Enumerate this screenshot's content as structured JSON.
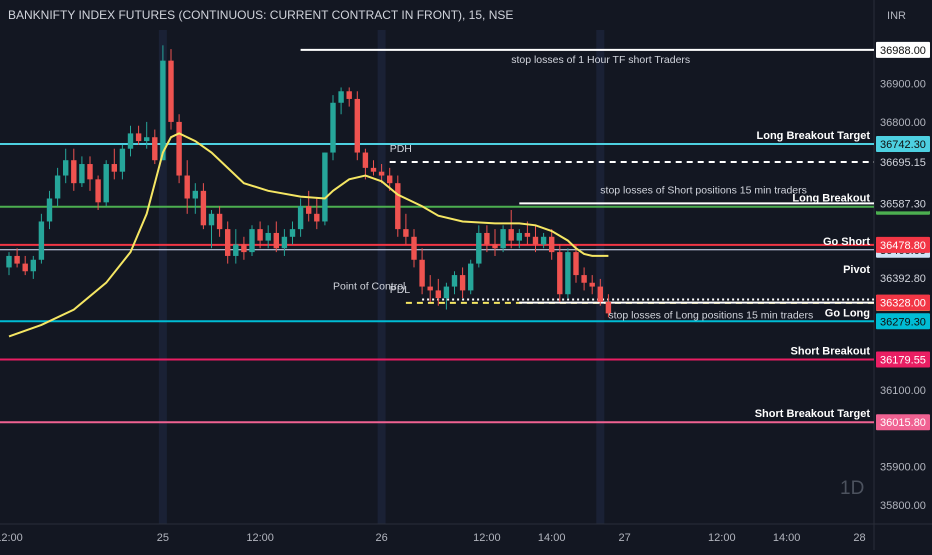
{
  "chart_data": {
    "type": "candlestick",
    "title": "BANKNIFTY INDEX FUTURES (CONTINUOUS: CURRENT CONTRACT IN FRONT), 15, NSE",
    "currency": "INR",
    "watermark": "1D",
    "ylim": [
      35750,
      37040
    ],
    "y_ticks": [
      36900,
      36800,
      36100,
      35900,
      35800
    ],
    "x_ticks": [
      {
        "label": "12:00",
        "i": 0
      },
      {
        "label": "25",
        "i": 19
      },
      {
        "label": "12:00",
        "i": 31
      },
      {
        "label": "26",
        "i": 46
      },
      {
        "label": "12:00",
        "i": 59
      },
      {
        "label": "14:00",
        "i": 67
      },
      {
        "label": "27",
        "i": 76
      },
      {
        "label": "12:00",
        "i": 88
      },
      {
        "label": "14:00",
        "i": 96
      },
      {
        "label": "28",
        "i": 105
      }
    ],
    "session_breaks": [
      19,
      46,
      73
    ],
    "candles": [
      {
        "o": 36420,
        "h": 36460,
        "l": 36400,
        "c": 36450
      },
      {
        "o": 36450,
        "h": 36470,
        "l": 36420,
        "c": 36430
      },
      {
        "o": 36430,
        "h": 36450,
        "l": 36400,
        "c": 36410
      },
      {
        "o": 36410,
        "h": 36450,
        "l": 36390,
        "c": 36440
      },
      {
        "o": 36440,
        "h": 36560,
        "l": 36430,
        "c": 36540
      },
      {
        "o": 36540,
        "h": 36620,
        "l": 36520,
        "c": 36600
      },
      {
        "o": 36600,
        "h": 36680,
        "l": 36580,
        "c": 36660
      },
      {
        "o": 36660,
        "h": 36730,
        "l": 36640,
        "c": 36700
      },
      {
        "o": 36700,
        "h": 36730,
        "l": 36620,
        "c": 36640
      },
      {
        "o": 36640,
        "h": 36710,
        "l": 36630,
        "c": 36690
      },
      {
        "o": 36690,
        "h": 36710,
        "l": 36620,
        "c": 36650
      },
      {
        "o": 36650,
        "h": 36660,
        "l": 36570,
        "c": 36590
      },
      {
        "o": 36590,
        "h": 36700,
        "l": 36580,
        "c": 36690
      },
      {
        "o": 36690,
        "h": 36730,
        "l": 36650,
        "c": 36670
      },
      {
        "o": 36670,
        "h": 36740,
        "l": 36650,
        "c": 36730
      },
      {
        "o": 36730,
        "h": 36790,
        "l": 36710,
        "c": 36770
      },
      {
        "o": 36770,
        "h": 36790,
        "l": 36740,
        "c": 36750
      },
      {
        "o": 36750,
        "h": 36800,
        "l": 36730,
        "c": 36760
      },
      {
        "o": 36760,
        "h": 36780,
        "l": 36690,
        "c": 36700
      },
      {
        "o": 36700,
        "h": 37000,
        "l": 36700,
        "c": 36960
      },
      {
        "o": 36960,
        "h": 36990,
        "l": 36780,
        "c": 36800
      },
      {
        "o": 36800,
        "h": 36820,
        "l": 36640,
        "c": 36660
      },
      {
        "o": 36660,
        "h": 36700,
        "l": 36560,
        "c": 36600
      },
      {
        "o": 36600,
        "h": 36640,
        "l": 36560,
        "c": 36620
      },
      {
        "o": 36620,
        "h": 36640,
        "l": 36520,
        "c": 36530
      },
      {
        "o": 36530,
        "h": 36570,
        "l": 36470,
        "c": 36560
      },
      {
        "o": 36560,
        "h": 36580,
        "l": 36500,
        "c": 36520
      },
      {
        "o": 36520,
        "h": 36540,
        "l": 36430,
        "c": 36450
      },
      {
        "o": 36450,
        "h": 36520,
        "l": 36430,
        "c": 36480
      },
      {
        "o": 36480,
        "h": 36500,
        "l": 36440,
        "c": 36460
      },
      {
        "o": 36460,
        "h": 36530,
        "l": 36450,
        "c": 36520
      },
      {
        "o": 36520,
        "h": 36540,
        "l": 36470,
        "c": 36490
      },
      {
        "o": 36490,
        "h": 36530,
        "l": 36470,
        "c": 36510
      },
      {
        "o": 36510,
        "h": 36540,
        "l": 36460,
        "c": 36470
      },
      {
        "o": 36470,
        "h": 36520,
        "l": 36450,
        "c": 36500
      },
      {
        "o": 36500,
        "h": 36540,
        "l": 36480,
        "c": 36520
      },
      {
        "o": 36520,
        "h": 36600,
        "l": 36500,
        "c": 36580
      },
      {
        "o": 36580,
        "h": 36620,
        "l": 36540,
        "c": 36560
      },
      {
        "o": 36560,
        "h": 36600,
        "l": 36520,
        "c": 36540
      },
      {
        "o": 36540,
        "h": 36720,
        "l": 36530,
        "c": 36720
      },
      {
        "o": 36720,
        "h": 36870,
        "l": 36700,
        "c": 36850
      },
      {
        "o": 36850,
        "h": 36890,
        "l": 36820,
        "c": 36880
      },
      {
        "o": 36880,
        "h": 36890,
        "l": 36840,
        "c": 36860
      },
      {
        "o": 36860,
        "h": 36880,
        "l": 36700,
        "c": 36720
      },
      {
        "o": 36720,
        "h": 36730,
        "l": 36650,
        "c": 36680
      },
      {
        "o": 36680,
        "h": 36700,
        "l": 36660,
        "c": 36670
      },
      {
        "o": 36670,
        "h": 36690,
        "l": 36640,
        "c": 36660
      },
      {
        "o": 36660,
        "h": 36680,
        "l": 36620,
        "c": 36640
      },
      {
        "o": 36640,
        "h": 36660,
        "l": 36500,
        "c": 36520
      },
      {
        "o": 36520,
        "h": 36560,
        "l": 36480,
        "c": 36500
      },
      {
        "o": 36500,
        "h": 36520,
        "l": 36420,
        "c": 36440
      },
      {
        "o": 36440,
        "h": 36470,
        "l": 36350,
        "c": 36370
      },
      {
        "o": 36370,
        "h": 36400,
        "l": 36330,
        "c": 36360
      },
      {
        "o": 36360,
        "h": 36390,
        "l": 36320,
        "c": 36340
      },
      {
        "o": 36340,
        "h": 36380,
        "l": 36310,
        "c": 36370
      },
      {
        "o": 36370,
        "h": 36410,
        "l": 36350,
        "c": 36400
      },
      {
        "o": 36400,
        "h": 36420,
        "l": 36340,
        "c": 36360
      },
      {
        "o": 36360,
        "h": 36440,
        "l": 36350,
        "c": 36430
      },
      {
        "o": 36430,
        "h": 36530,
        "l": 36420,
        "c": 36510
      },
      {
        "o": 36510,
        "h": 36530,
        "l": 36460,
        "c": 36480
      },
      {
        "o": 36480,
        "h": 36520,
        "l": 36450,
        "c": 36470
      },
      {
        "o": 36470,
        "h": 36530,
        "l": 36460,
        "c": 36520
      },
      {
        "o": 36520,
        "h": 36570,
        "l": 36470,
        "c": 36490
      },
      {
        "o": 36490,
        "h": 36520,
        "l": 36470,
        "c": 36510
      },
      {
        "o": 36510,
        "h": 36540,
        "l": 36480,
        "c": 36500
      },
      {
        "o": 36500,
        "h": 36530,
        "l": 36460,
        "c": 36480
      },
      {
        "o": 36480,
        "h": 36510,
        "l": 36470,
        "c": 36500
      },
      {
        "o": 36500,
        "h": 36520,
        "l": 36440,
        "c": 36460
      },
      {
        "o": 36460,
        "h": 36480,
        "l": 36330,
        "c": 36350
      },
      {
        "o": 36350,
        "h": 36470,
        "l": 36340,
        "c": 36460
      },
      {
        "o": 36460,
        "h": 36480,
        "l": 36380,
        "c": 36400
      },
      {
        "o": 36400,
        "h": 36420,
        "l": 36360,
        "c": 36380
      },
      {
        "o": 36380,
        "h": 36400,
        "l": 36350,
        "c": 36370
      },
      {
        "o": 36370,
        "h": 36390,
        "l": 36320,
        "c": 36330
      },
      {
        "o": 36330,
        "h": 36350,
        "l": 36290,
        "c": 36300
      }
    ],
    "vwap": [
      [
        0,
        36240
      ],
      [
        4,
        36270
      ],
      [
        8,
        36310
      ],
      [
        12,
        36380
      ],
      [
        15,
        36460
      ],
      [
        17,
        36560
      ],
      [
        18,
        36640
      ],
      [
        19,
        36720
      ],
      [
        20,
        36760
      ],
      [
        21,
        36770
      ],
      [
        23,
        36750
      ],
      [
        25,
        36720
      ],
      [
        27,
        36680
      ],
      [
        29,
        36640
      ],
      [
        32,
        36620
      ],
      [
        36,
        36605
      ],
      [
        39,
        36600
      ],
      [
        40,
        36620
      ],
      [
        42,
        36650
      ],
      [
        44,
        36660
      ],
      [
        46,
        36645
      ],
      [
        48,
        36610
      ],
      [
        51,
        36580
      ],
      [
        53,
        36555
      ],
      [
        56,
        36540
      ],
      [
        60,
        36535
      ],
      [
        63,
        36535
      ],
      [
        65,
        36530
      ],
      [
        67,
        36515
      ],
      [
        69,
        36490
      ],
      [
        70,
        36470
      ],
      [
        71,
        36455
      ],
      [
        72,
        36450
      ],
      [
        74,
        36450
      ]
    ],
    "levels": [
      {
        "name": "Long Breakout Target",
        "value": 36742.3,
        "label": "36742.30",
        "color": "#4dd0e1",
        "tag_bg": "#4dd0e1",
        "tag_fg": "#0e0e0e",
        "style": "solid",
        "width": 2,
        "start_i": 0,
        "text": "Long Breakout Target"
      },
      {
        "name": "Long Breakout",
        "value": 36578.55,
        "label": "36578.55",
        "color": "#4caf50",
        "tag_bg": "#4caf50",
        "tag_fg": "#ffffff",
        "style": "solid",
        "width": 2,
        "start_i": 0,
        "text": "Long Breakout"
      },
      {
        "name": "Go Short",
        "value": 36466.05,
        "label": "36466.05",
        "color": "#e0e7ff",
        "tag_bg": "#cfe3f5",
        "tag_fg": "#0e0e0e",
        "style": "solid",
        "width": 1,
        "start_i": 0,
        "text": "Go Short"
      },
      {
        "name": "Short red line",
        "value": 36478.8,
        "label": "36478.80",
        "color": "#f23645",
        "tag_bg": "#f23645",
        "tag_fg": "#ffffff",
        "style": "solid",
        "width": 2,
        "start_i": 0,
        "text": ""
      },
      {
        "name": "Pivot",
        "value": 36392.8,
        "label": "36392.80",
        "color": "#d1d4dc",
        "tag_bg": "#131722",
        "tag_fg": "#d1d4dc",
        "style": "none",
        "width": 1,
        "start_i": 0,
        "text": "Pivot"
      },
      {
        "name": "Go Long",
        "value": 36279.3,
        "label": "36279.30",
        "color": "#00bcd4",
        "tag_bg": "#00bcd4",
        "tag_fg": "#0e0e0e",
        "style": "solid",
        "width": 2,
        "start_i": 0,
        "text": "Go Long"
      },
      {
        "name": "Short Breakout",
        "value": 36179.55,
        "label": "36179.55",
        "color": "#e91e63",
        "tag_bg": "#e91e63",
        "tag_fg": "#ffffff",
        "style": "solid",
        "width": 2,
        "start_i": 0,
        "text": "Short Breakout"
      },
      {
        "name": "Short Breakout Target",
        "value": 36015.8,
        "label": "36015.80",
        "color": "#f06292",
        "tag_bg": "#f06292",
        "tag_fg": "#ffffff",
        "style": "solid",
        "width": 2,
        "start_i": 0,
        "text": "Short Breakout Target"
      },
      {
        "name": "PDH",
        "value": 36695.15,
        "label": "36695.15",
        "color": "#ffffff",
        "tag_bg": "#131722",
        "tag_fg": "#d1d4dc",
        "style": "dash",
        "width": 2,
        "start_i": 47,
        "text": ""
      },
      {
        "name": "Point of Control",
        "value": 36336.25,
        "label": "36336.25",
        "color": "#ffffff",
        "tag_bg": "#131722",
        "tag_fg": "#d1d4dc",
        "style": "dot",
        "width": 2,
        "start_i": 51,
        "text": ""
      },
      {
        "name": "PDL",
        "value": 36327.4,
        "label": "36327.40",
        "color": "#f5e663",
        "tag_bg": "#f5e663",
        "tag_fg": "#0e0e0e",
        "style": "dash",
        "width": 2,
        "start_i": 49,
        "text": ""
      },
      {
        "name": "Stop losses 1H",
        "value": 36988.0,
        "label": "36988.00",
        "color": "#ffffff",
        "tag_bg": "#ffffff",
        "tag_fg": "#0e0e0e",
        "style": "solid",
        "width": 2,
        "start_i": 36,
        "text": ""
      },
      {
        "name": "Stop losses Short 15m",
        "value": 36587.3,
        "label": "36587.30",
        "color": "#ffffff",
        "tag_bg": "#131722",
        "tag_fg": "#d1d4dc",
        "style": "solid",
        "width": 2,
        "start_i": 63,
        "text": ""
      },
      {
        "name": "Stop losses Long 15m",
        "value": 36328.0,
        "label": "36328.00",
        "color": "#ffffff",
        "tag_bg": "#f23645",
        "tag_fg": "#ffffff",
        "style": "solid",
        "width": 2,
        "start_i": 63,
        "text": ""
      }
    ],
    "annotations": [
      {
        "text": "stop losses of 1 Hour  TF  short Traders",
        "value": 36988.0,
        "i": 62,
        "dy": 13
      },
      {
        "text": "stop losses of  Short positions 15 min traders",
        "value": 36587.3,
        "i": 73,
        "dy": -10
      },
      {
        "text": "stop losses of  Long positions 15 min traders",
        "value": 36328.0,
        "i": 74,
        "dy": 16
      },
      {
        "text": "PDH",
        "value": 36695.15,
        "i": 47,
        "dy": -10
      },
      {
        "text": "Point of Control",
        "value": 36336.25,
        "i": 40,
        "dy": -10
      },
      {
        "text": "PDL",
        "value": 36327.4,
        "i": 47,
        "dy": -10
      }
    ]
  }
}
